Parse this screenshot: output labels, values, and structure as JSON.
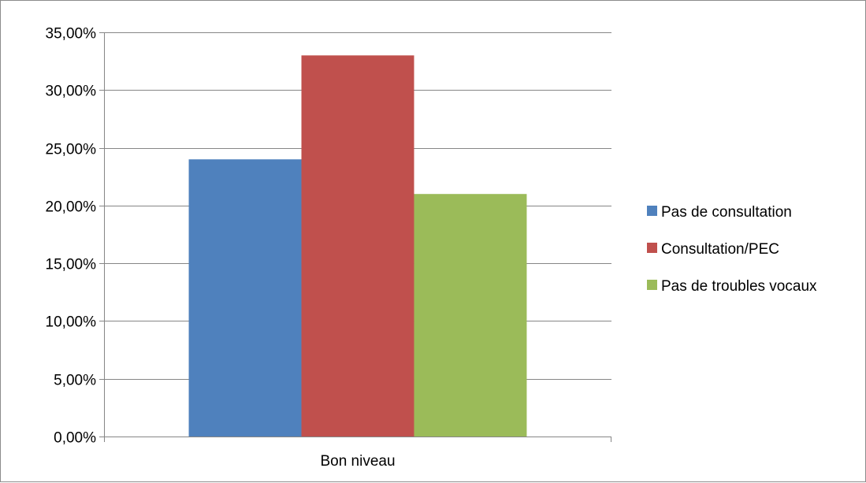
{
  "chart_data": {
    "type": "bar",
    "categories": [
      "Bon niveau"
    ],
    "series": [
      {
        "name": "Pas de consultation",
        "values": [
          0.24
        ],
        "color": "#4f81bd"
      },
      {
        "name": "Consultation/PEC",
        "values": [
          0.33
        ],
        "color": "#c0504d"
      },
      {
        "name": "Pas de troubles vocaux",
        "values": [
          0.21
        ],
        "color": "#9bbb59"
      }
    ],
    "ylim": [
      0,
      0.35
    ],
    "yticks": [
      0,
      0.05,
      0.1,
      0.15,
      0.2,
      0.25,
      0.3,
      0.35
    ],
    "ytick_labels": [
      "0,00%",
      "5,00%",
      "10,00%",
      "15,00%",
      "20,00%",
      "25,00%",
      "30,00%",
      "35,00%"
    ],
    "grid": true,
    "legend_position": "right",
    "gridline_color": "#868686",
    "axis_color": "#868686"
  }
}
